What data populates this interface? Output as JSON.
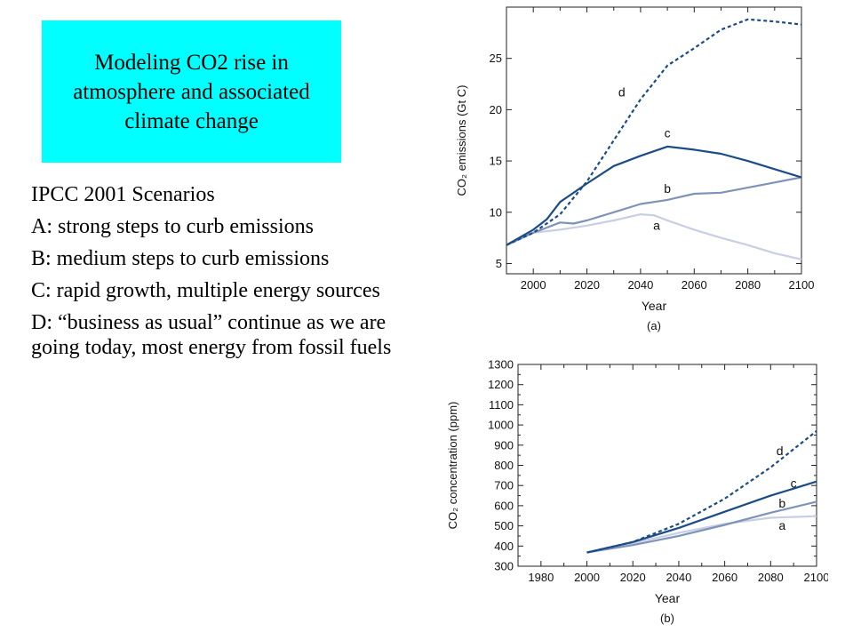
{
  "slide": {
    "title": "Modeling CO2 rise in atmosphere and associated climate change",
    "subtitle": "IPCC 2001 Scenarios",
    "items": [
      "A: strong steps to curb emissions",
      "B: medium steps to curb emissions",
      "C: rapid growth, multiple energy sources",
      "D: “business as usual” continue as we are going today, most energy from fossil fuels"
    ],
    "colors": {
      "title_bg": "#00ffff"
    }
  },
  "chart_data": [
    {
      "type": "line",
      "title": "",
      "panel_label": "(a)",
      "xlabel": "Year",
      "ylabel": "CO₂ emissions (Gt C)",
      "xlim": [
        1990,
        2100
      ],
      "ylim": [
        4,
        30
      ],
      "xticks": [
        2000,
        2020,
        2040,
        2060,
        2080,
        2100
      ],
      "yticks": [
        5,
        10,
        15,
        20,
        25
      ],
      "series": [
        {
          "name": "a",
          "color": "#c9cfe3",
          "dashed": false,
          "x": [
            1990,
            2000,
            2010,
            2020,
            2030,
            2040,
            2045,
            2050,
            2060,
            2070,
            2080,
            2090,
            2100
          ],
          "y": [
            6.8,
            8.0,
            8.3,
            8.7,
            9.2,
            9.8,
            9.7,
            9.2,
            8.3,
            7.5,
            6.8,
            6.0,
            5.4
          ]
        },
        {
          "name": "b",
          "color": "#7f93b8",
          "dashed": false,
          "x": [
            1990,
            2000,
            2005,
            2010,
            2015,
            2020,
            2030,
            2040,
            2050,
            2060,
            2070,
            2080,
            2090,
            2100
          ],
          "y": [
            6.8,
            8.0,
            8.5,
            9.0,
            8.9,
            9.2,
            10.0,
            10.8,
            11.2,
            11.8,
            11.9,
            12.4,
            12.9,
            13.4
          ]
        },
        {
          "name": "c",
          "color": "#1b4c86",
          "dashed": false,
          "x": [
            1990,
            2000,
            2005,
            2010,
            2020,
            2030,
            2040,
            2050,
            2060,
            2070,
            2080,
            2090,
            2100
          ],
          "y": [
            6.8,
            8.3,
            9.3,
            11.0,
            12.8,
            14.5,
            15.5,
            16.4,
            16.1,
            15.7,
            15.0,
            14.2,
            13.4
          ]
        },
        {
          "name": "d",
          "color": "#1b4c86",
          "dashed": true,
          "x": [
            1990,
            2000,
            2010,
            2020,
            2030,
            2040,
            2050,
            2060,
            2070,
            2080,
            2090,
            2100
          ],
          "y": [
            6.8,
            8.0,
            9.8,
            13.0,
            17.0,
            21.0,
            24.3,
            26.0,
            27.8,
            28.8,
            28.6,
            28.3
          ]
        }
      ],
      "annotations": [
        {
          "text": "d",
          "x": 2033,
          "y": 21.3
        },
        {
          "text": "c",
          "x": 2050,
          "y": 17.3
        },
        {
          "text": "b",
          "x": 2050,
          "y": 11.9
        },
        {
          "text": "a",
          "x": 2046,
          "y": 8.3
        }
      ]
    },
    {
      "type": "line",
      "title": "",
      "panel_label": "(b)",
      "xlabel": "Year",
      "ylabel": "CO₂ concentration (ppm)",
      "xlim": [
        1970,
        2100
      ],
      "ylim": [
        300,
        1300
      ],
      "xticks": [
        1980,
        2000,
        2020,
        2040,
        2060,
        2080,
        2100
      ],
      "yticks": [
        300,
        400,
        500,
        600,
        700,
        800,
        900,
        1000,
        1100,
        1200,
        1300
      ],
      "series": [
        {
          "name": "a",
          "color": "#c9cfe3",
          "dashed": false,
          "x": [
            2000,
            2020,
            2040,
            2060,
            2080,
            2100
          ],
          "y": [
            368,
            415,
            465,
            510,
            540,
            548
          ]
        },
        {
          "name": "b",
          "color": "#7f93b8",
          "dashed": false,
          "x": [
            2000,
            2020,
            2040,
            2060,
            2080,
            2100
          ],
          "y": [
            368,
            405,
            450,
            505,
            565,
            620
          ]
        },
        {
          "name": "c",
          "color": "#1b4c86",
          "dashed": false,
          "x": [
            2000,
            2020,
            2040,
            2060,
            2080,
            2100
          ],
          "y": [
            368,
            420,
            490,
            570,
            650,
            720
          ]
        },
        {
          "name": "d",
          "color": "#1b4c86",
          "dashed": true,
          "x": [
            2000,
            2020,
            2040,
            2060,
            2080,
            2100
          ],
          "y": [
            368,
            420,
            510,
            635,
            790,
            970
          ]
        }
      ],
      "annotations": [
        {
          "text": "d",
          "x": 2084,
          "y": 850
        },
        {
          "text": "c",
          "x": 2090,
          "y": 690
        },
        {
          "text": "b",
          "x": 2085,
          "y": 590
        },
        {
          "text": "a",
          "x": 2085,
          "y": 480
        }
      ]
    }
  ]
}
